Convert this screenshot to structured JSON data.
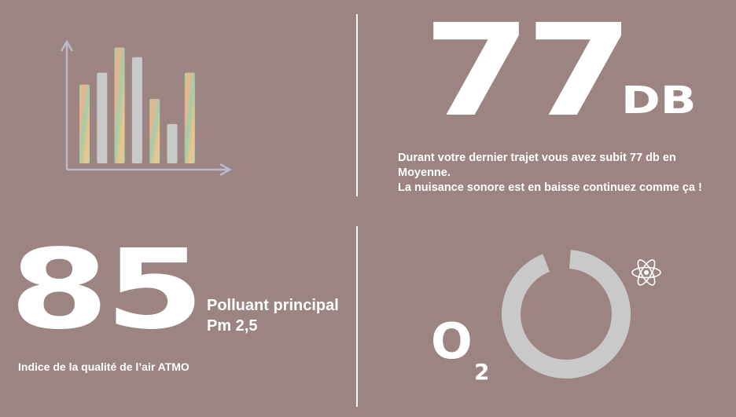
{
  "colors": {
    "background": "#9c8483",
    "text": "#ffffff",
    "chart_axis": "#b9b9c9",
    "bar_plain": "#c9c9c9",
    "ring": "#c9c9c9"
  },
  "noise": {
    "value": "77",
    "unit": "DB",
    "message_line1": "Durant votre dernier trajet vous avez subit 77 db en Moyenne.",
    "message_line2": "La nuisance sonore est en baisse continuez comme ça !"
  },
  "air_quality": {
    "value": "85",
    "pollutant_label": "Polluant principal",
    "pollutant_value": "Pm 2,5",
    "caption": "Indice de la qualité de l’air ATMO"
  },
  "oxygen": {
    "symbol_letter": "O",
    "symbol_subscript": "2",
    "ring_fraction": 0.93,
    "icon": "atom-icon"
  },
  "chart_data": {
    "type": "bar",
    "values": [
      0.66,
      0.76,
      0.97,
      0.89,
      0.54,
      0.33,
      0.76
    ],
    "gradient_bars": [
      true,
      false,
      true,
      false,
      true,
      false,
      true
    ],
    "title": "",
    "xlabel": "",
    "ylabel": ""
  }
}
